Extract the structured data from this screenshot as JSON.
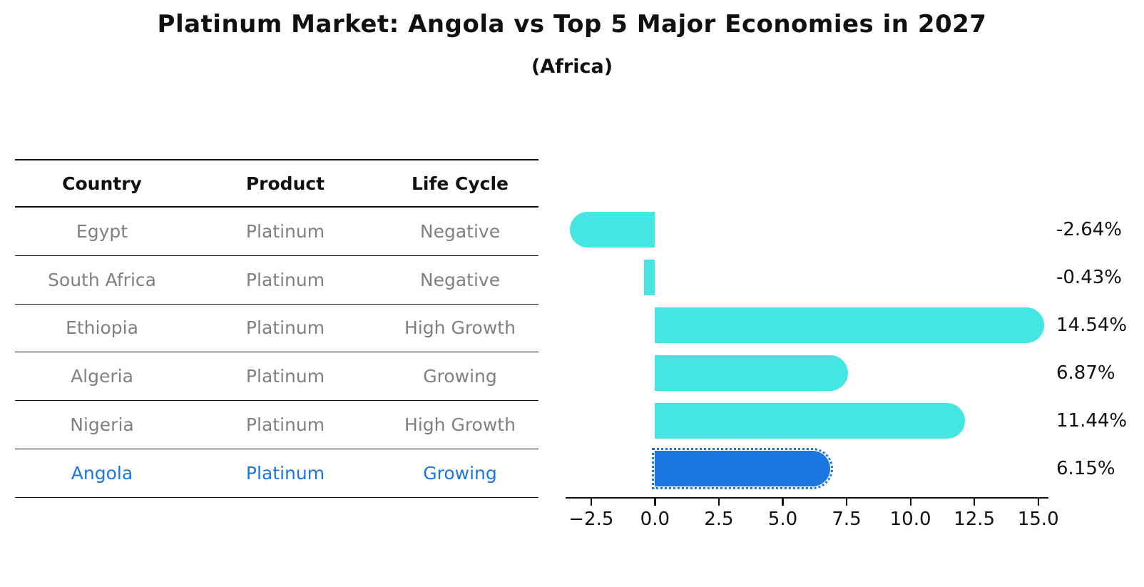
{
  "title": "Platinum Market: Angola vs Top 5 Major Economies in 2027",
  "subtitle": "(Africa)",
  "table": {
    "headers": [
      "Country",
      "Product",
      "Life Cycle"
    ],
    "rows": [
      {
        "country": "Egypt",
        "product": "Platinum",
        "life_cycle": "Negative",
        "highlight": false
      },
      {
        "country": "South Africa",
        "product": "Platinum",
        "life_cycle": "Negative",
        "highlight": false
      },
      {
        "country": "Ethiopia",
        "product": "Platinum",
        "life_cycle": "High Growth",
        "highlight": false
      },
      {
        "country": "Algeria",
        "product": "Platinum",
        "life_cycle": "Growing",
        "highlight": false
      },
      {
        "country": "Nigeria",
        "product": "Platinum",
        "life_cycle": "High Growth",
        "highlight": false
      },
      {
        "country": "Angola",
        "product": "Platinum",
        "life_cycle": "Growing",
        "highlight": true
      }
    ]
  },
  "chart_data": {
    "type": "bar",
    "orientation": "horizontal",
    "title": "Platinum Market: Angola vs Top 5 Major Economies in 2027",
    "subtitle": "(Africa)",
    "categories": [
      "Egypt",
      "South Africa",
      "Ethiopia",
      "Algeria",
      "Nigeria",
      "Angola"
    ],
    "values": [
      -2.64,
      -0.43,
      14.54,
      6.87,
      11.44,
      6.15
    ],
    "value_labels": [
      "-2.64%",
      "-0.43%",
      "14.54%",
      "6.87%",
      "11.44%",
      "6.15%"
    ],
    "highlight_category": "Angola",
    "bar_color": "#45E6E1",
    "highlight_bar_color": "#1C76DF",
    "text_gray": "#808080",
    "xlim": [
      -3.5,
      15.4
    ],
    "xticks": [
      -2.5,
      0,
      2.5,
      5,
      7.5,
      10,
      12.5,
      15
    ],
    "xtick_labels": [
      "−2.5",
      "0.0",
      "2.5",
      "5.0",
      "7.5",
      "10.0",
      "12.5",
      "15.0"
    ],
    "xlabel": "",
    "ylabel": "",
    "grid": false,
    "legend": null
  }
}
